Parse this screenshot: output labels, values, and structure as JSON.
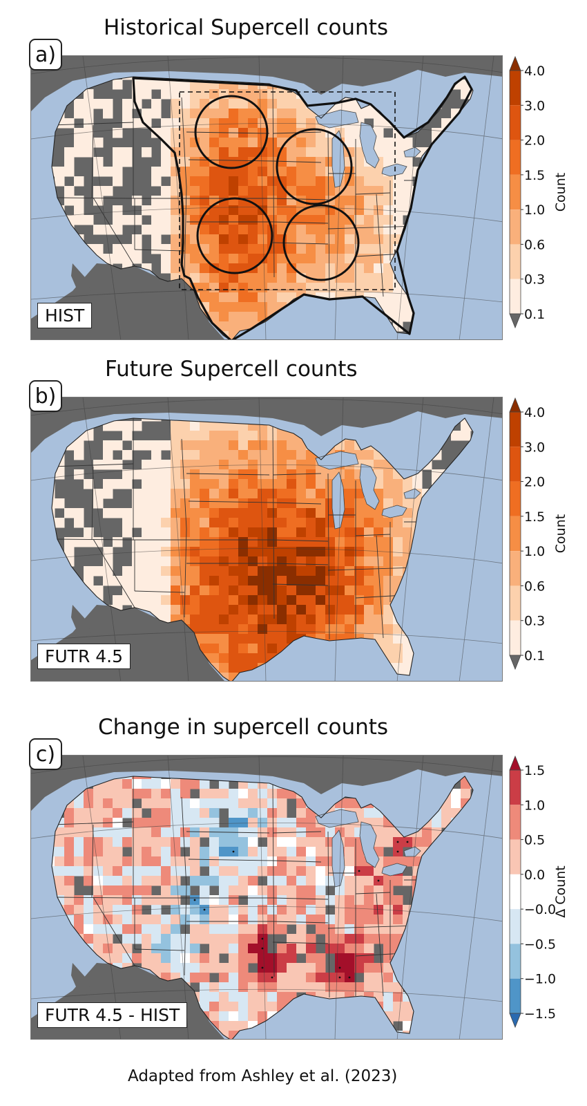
{
  "panels": [
    {
      "id": "a",
      "label": "a)",
      "title": "Historical Supercell counts",
      "experiment": "HIST",
      "colorbar": {
        "title": "Count",
        "ticks": [
          "4.0",
          "3.0",
          "2.0",
          "1.5",
          "1.0",
          "0.6",
          "0.3",
          "0.1"
        ],
        "colors": [
          "#bf4100",
          "#de5510",
          "#ef6e22",
          "#f68e45",
          "#f9b07b",
          "#fcd1ad",
          "#feede0"
        ],
        "under": "#666666",
        "over": "#8a2e00"
      }
    },
    {
      "id": "b",
      "label": "b)",
      "title": "Future Supercell counts",
      "experiment": "FUTR 4.5",
      "colorbar": {
        "title": "Count",
        "ticks": [
          "4.0",
          "3.0",
          "2.0",
          "1.5",
          "1.0",
          "0.6",
          "0.3",
          "0.1"
        ],
        "colors": [
          "#bf4100",
          "#de5510",
          "#ef6e22",
          "#f68e45",
          "#f9b07b",
          "#fcd1ad",
          "#feede0"
        ],
        "under": "#666666",
        "over": "#8a2e00"
      }
    },
    {
      "id": "c",
      "label": "c)",
      "title": "Change in supercell counts",
      "experiment": "FUTR 4.5 - HIST",
      "colorbar": {
        "title": "Δ Count",
        "ticks": [
          "1.5",
          "1.0",
          "0.5",
          "0.0",
          "−0.0",
          "−0.5",
          "−1.0",
          "−1.5"
        ],
        "colors": [
          "#cb3d46",
          "#ee8a7a",
          "#f9c6b4",
          "#ffffff",
          "#d7e7f3",
          "#94c2de",
          "#4f95c8"
        ],
        "under": "#2a6ab0",
        "over": "#a30f2a"
      }
    }
  ],
  "colors": {
    "ocean": "#a9c0dc",
    "land_outside": "#666666"
  },
  "footer": "Adapted from Ashley et al. (2023)"
}
